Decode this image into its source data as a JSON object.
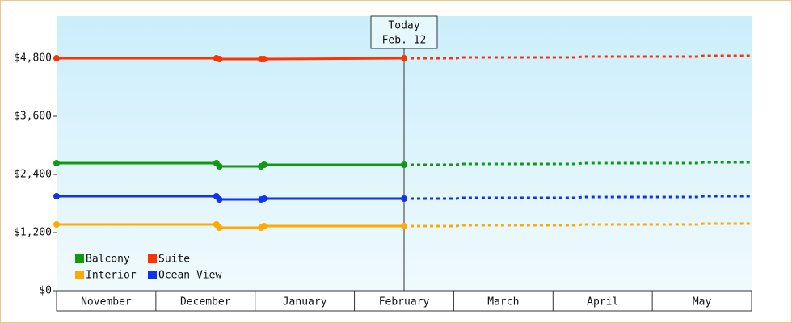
{
  "chart_data": {
    "type": "line",
    "x": [
      0,
      1.61,
      1.64,
      2.06,
      2.09,
      3.5,
      4.03,
      4.07,
      5.25,
      5.29,
      6.47,
      6.51,
      7
    ],
    "xlim": [
      0,
      7
    ],
    "month_labels": [
      "November",
      "December",
      "January",
      "February",
      "March",
      "April",
      "May"
    ],
    "ylim": [
      0,
      5667
    ],
    "yticks": [
      {
        "value": 0,
        "label": "$0"
      },
      {
        "value": 1200,
        "label": "$1,200"
      },
      {
        "value": 2400,
        "label": "$2,400"
      },
      {
        "value": 3600,
        "label": "$3,600"
      },
      {
        "value": 4800,
        "label": "$4,800"
      }
    ],
    "today": {
      "x": 3.5,
      "label": "Today",
      "date": "Feb. 12"
    },
    "series": [
      {
        "name": "Balcony",
        "color": "#119911",
        "values": [
          2633,
          2633,
          2567,
          2567,
          2600,
          2600,
          2600,
          2617,
          2617,
          2633,
          2633,
          2650,
          2650
        ]
      },
      {
        "name": "Suite",
        "color": "#ff3300",
        "values": [
          4800,
          4800,
          4783,
          4783,
          4783,
          4800,
          4800,
          4817,
          4817,
          4833,
          4833,
          4850,
          4850
        ]
      },
      {
        "name": "Interior",
        "color": "#ffaa00",
        "values": [
          1367,
          1367,
          1300,
          1300,
          1333,
          1333,
          1333,
          1350,
          1350,
          1367,
          1367,
          1383,
          1383
        ]
      },
      {
        "name": "Ocean View",
        "color": "#1133ee",
        "values": [
          1950,
          1950,
          1883,
          1883,
          1900,
          1900,
          1900,
          1917,
          1917,
          1933,
          1933,
          1950,
          1950
        ]
      }
    ]
  }
}
